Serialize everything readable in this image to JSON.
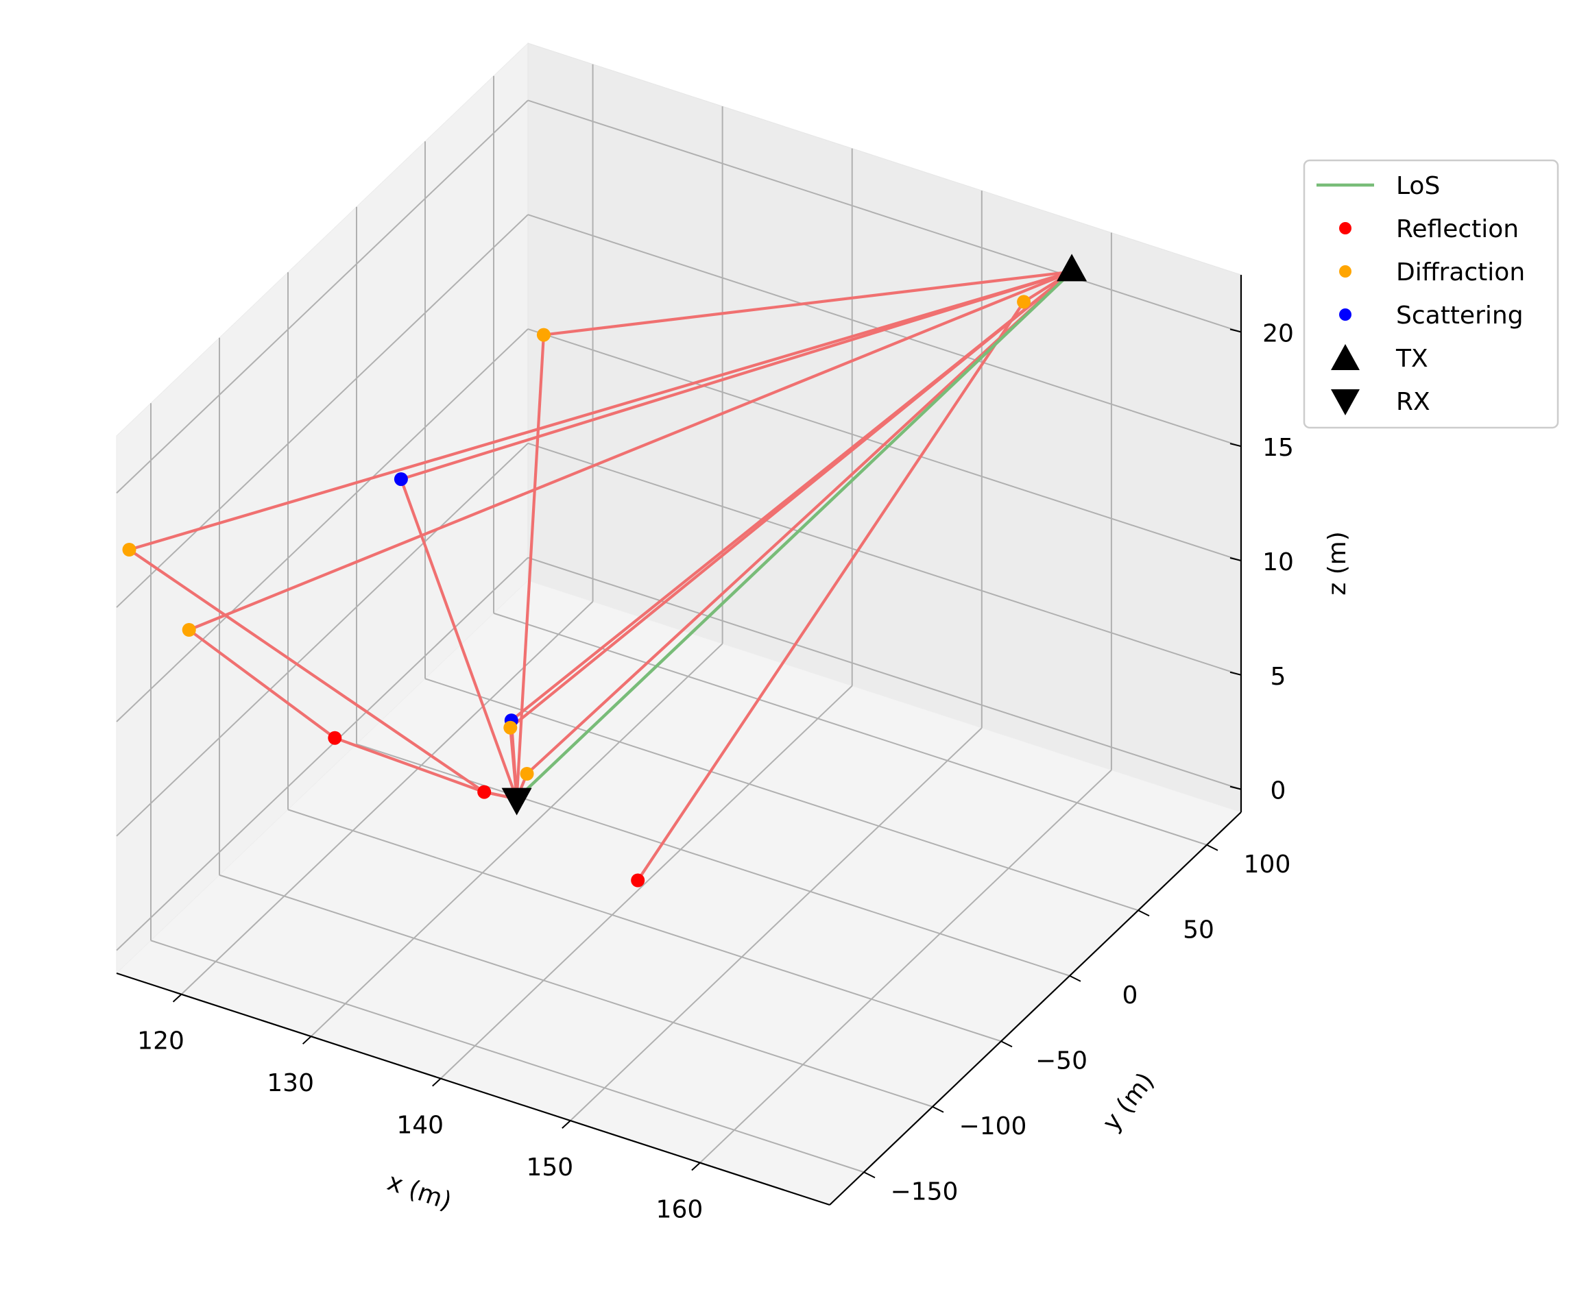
{
  "chart_data": {
    "type": "scatter3d",
    "axes": {
      "x": {
        "label": "x (m)",
        "range": [
          115,
          170
        ],
        "ticks": [
          120,
          130,
          140,
          150,
          160
        ],
        "tick_labels": [
          "120",
          "130",
          "140",
          "150",
          "160"
        ]
      },
      "y": {
        "label": "y (m)",
        "range": [
          -175,
          125
        ],
        "ticks": [
          -150,
          -100,
          -50,
          0,
          50,
          100
        ],
        "tick_labels": [
          "−150",
          "−100",
          "−50",
          "0",
          "50",
          "100"
        ]
      },
      "z": {
        "label": "z (m)",
        "range": [
          -1,
          22.5
        ],
        "ticks": [
          0,
          5,
          10,
          15,
          20
        ],
        "tick_labels": [
          "0",
          "5",
          "10",
          "15",
          "20"
        ]
      }
    },
    "grid": true,
    "legend": {
      "placement": "upper-right-outside",
      "entries": [
        {
          "label": "LoS",
          "kind": "line",
          "color": "#78bc78"
        },
        {
          "label": "Reflection",
          "kind": "dot",
          "color": "#ff0000"
        },
        {
          "label": "Diffraction",
          "kind": "dot",
          "color": "#ffa500"
        },
        {
          "label": "Scattering",
          "kind": "dot",
          "color": "#0000ff"
        },
        {
          "label": "TX",
          "kind": "triangle-up",
          "color": "#000000"
        },
        {
          "label": "RX",
          "kind": "triangle-down",
          "color": "#000000"
        }
      ]
    },
    "colors": {
      "ray": "#f07070",
      "los": "#78bc78",
      "reflection": "#ff0000",
      "diffraction": "#ffa500",
      "scattering": "#0000ff",
      "marker": "#000000"
    },
    "tx": [
      158,
      115,
      21
    ],
    "rx": [
      130,
      -25,
      0.8
    ],
    "los": [
      [
        158,
        115,
        21
      ],
      [
        130,
        -25,
        0.8
      ]
    ],
    "points": [
      {
        "type": "diffraction",
        "xyz": [
          154.3,
          115,
          19
        ]
      },
      {
        "type": "diffraction",
        "xyz": [
          118.6,
          102.4,
          11.7
        ]
      },
      {
        "type": "scattering",
        "xyz": [
          113.3,
          48.5,
          7.5
        ]
      },
      {
        "type": "scattering",
        "xyz": [
          126.2,
          7.0,
          1.7
        ]
      },
      {
        "type": "diffraction",
        "xyz": [
          126.3,
          5.3,
          1.5
        ]
      },
      {
        "type": "diffraction",
        "xyz": [
          128.8,
          -6.2,
          0.6
        ]
      },
      {
        "type": "diffraction",
        "xyz": [
          92.4,
          47.9,
          0.6
        ]
      },
      {
        "type": "diffraction",
        "xyz": [
          99.3,
          26.3,
          -0.4
        ]
      },
      {
        "type": "reflection",
        "xyz": [
          114.2,
          -8.3,
          -0.4
        ]
      },
      {
        "type": "reflection",
        "xyz": [
          127.3,
          -23.2,
          0.5
        ]
      },
      {
        "type": "reflection",
        "xyz": [
          141.6,
          -46.4,
          0.6
        ]
      }
    ],
    "paths": [
      [
        [
          158,
          115,
          21
        ],
        [
          154.3,
          115,
          19
        ],
        [
          141.6,
          -46.4,
          0.6
        ]
      ],
      [
        [
          158,
          115,
          21
        ],
        [
          118.6,
          102.4,
          11.7
        ],
        [
          130,
          -25,
          0.8
        ]
      ],
      [
        [
          158,
          115,
          21
        ],
        [
          113.3,
          48.5,
          7.5
        ],
        [
          130,
          -25,
          0.8
        ]
      ],
      [
        [
          158,
          115,
          21
        ],
        [
          126.2,
          7.0,
          1.7
        ],
        [
          130,
          -25,
          0.8
        ]
      ],
      [
        [
          158,
          115,
          21
        ],
        [
          126.3,
          5.3,
          1.5
        ],
        [
          130,
          -25,
          0.8
        ]
      ],
      [
        [
          158,
          115,
          21
        ],
        [
          128.8,
          -6.2,
          0.6
        ],
        [
          130,
          -25,
          0.8
        ]
      ],
      [
        [
          158,
          115,
          21
        ],
        [
          92.4,
          47.9,
          0.6
        ],
        [
          127.3,
          -23.2,
          0.5
        ],
        [
          130,
          -25,
          0.8
        ]
      ],
      [
        [
          158,
          115,
          21
        ],
        [
          99.3,
          26.3,
          -0.4
        ],
        [
          114.2,
          -8.3,
          -0.4
        ],
        [
          127.3,
          -23.2,
          0.5
        ],
        [
          130,
          -25,
          0.8
        ]
      ]
    ]
  }
}
